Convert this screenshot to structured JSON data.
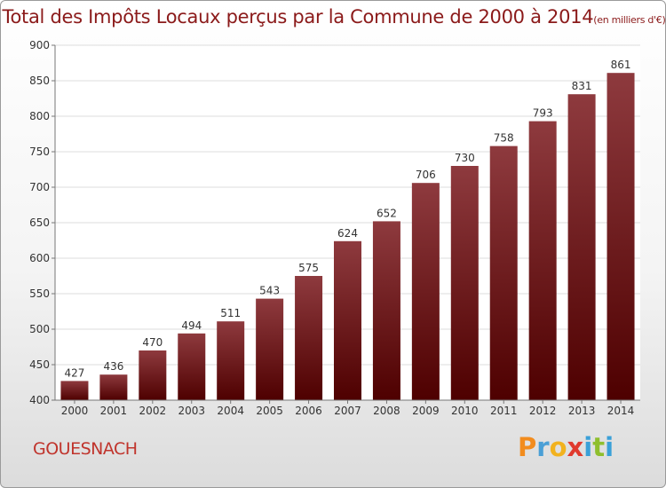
{
  "title": "Total des Impôts Locaux perçus par la Commune de 2000 à 2014",
  "title_unit": "(en milliers d'€)",
  "commune": "GOUESNACH",
  "brand": {
    "letters": [
      "P",
      "r",
      "o",
      "x",
      "i",
      "t",
      "i"
    ],
    "colors": [
      "#f28c1e",
      "#4a9fd6",
      "#f2b21e",
      "#e03a2e",
      "#3aa0d8",
      "#8fbf2e",
      "#3aa0d8"
    ]
  },
  "colors": {
    "bar_top": "#8e3a3e",
    "bar_bottom": "#4e0000",
    "grid": "#dcdcdc",
    "axis": "#777777",
    "text": "#333333"
  },
  "chart_data": {
    "type": "bar",
    "categories": [
      "2000",
      "2001",
      "2002",
      "2003",
      "2004",
      "2005",
      "2006",
      "2007",
      "2008",
      "2009",
      "2010",
      "2011",
      "2012",
      "2013",
      "2014"
    ],
    "values": [
      427,
      436,
      470,
      494,
      511,
      543,
      575,
      624,
      652,
      706,
      730,
      758,
      793,
      831,
      861
    ],
    "ylim": [
      400,
      900
    ],
    "yticks": [
      400,
      450,
      500,
      550,
      600,
      650,
      700,
      750,
      800,
      850,
      900
    ],
    "grid": true,
    "legend": "none"
  }
}
